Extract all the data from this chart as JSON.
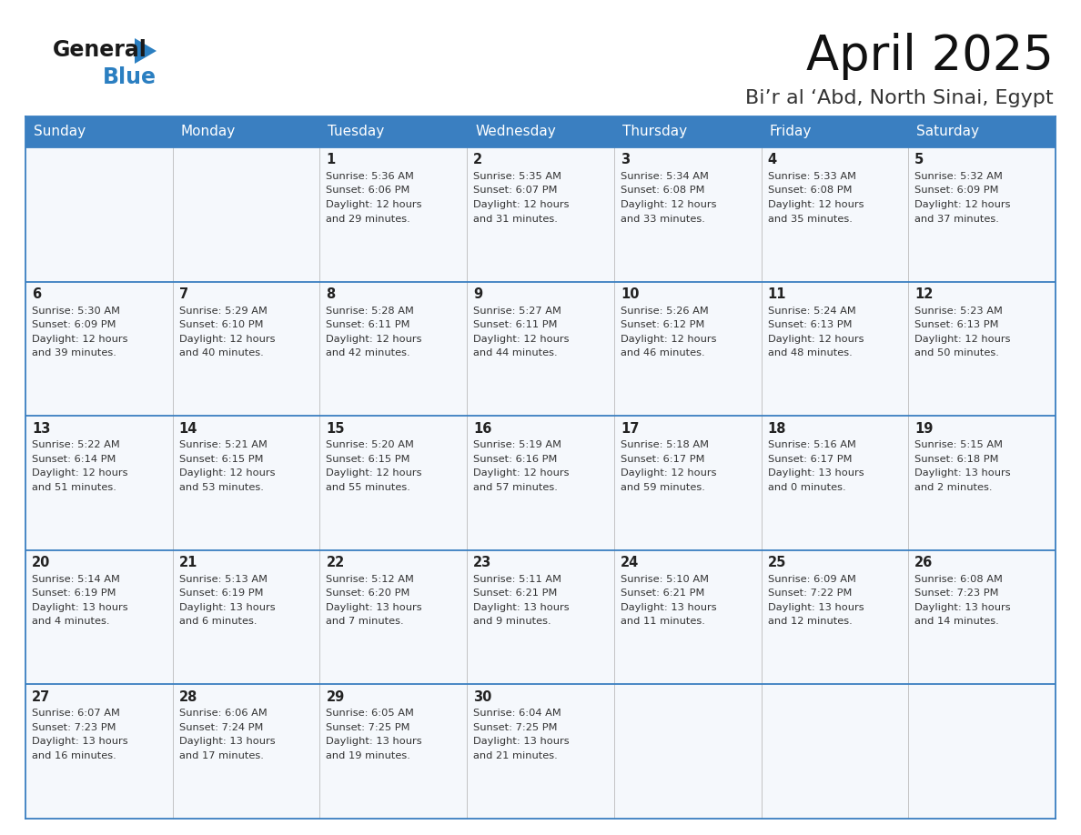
{
  "title": "April 2025",
  "subtitle": "Bi’r al ‘Abd, North Sinai, Egypt",
  "header_bg": "#3a7fc1",
  "header_text": "#ffffff",
  "cell_bg": "#f5f8fc",
  "border_color": "#3a7fc1",
  "text_color": "#333333",
  "days_of_week": [
    "Sunday",
    "Monday",
    "Tuesday",
    "Wednesday",
    "Thursday",
    "Friday",
    "Saturday"
  ],
  "weeks": [
    [
      {
        "day": "",
        "info": ""
      },
      {
        "day": "",
        "info": ""
      },
      {
        "day": "1",
        "info": "Sunrise: 5:36 AM\nSunset: 6:06 PM\nDaylight: 12 hours\nand 29 minutes."
      },
      {
        "day": "2",
        "info": "Sunrise: 5:35 AM\nSunset: 6:07 PM\nDaylight: 12 hours\nand 31 minutes."
      },
      {
        "day": "3",
        "info": "Sunrise: 5:34 AM\nSunset: 6:08 PM\nDaylight: 12 hours\nand 33 minutes."
      },
      {
        "day": "4",
        "info": "Sunrise: 5:33 AM\nSunset: 6:08 PM\nDaylight: 12 hours\nand 35 minutes."
      },
      {
        "day": "5",
        "info": "Sunrise: 5:32 AM\nSunset: 6:09 PM\nDaylight: 12 hours\nand 37 minutes."
      }
    ],
    [
      {
        "day": "6",
        "info": "Sunrise: 5:30 AM\nSunset: 6:09 PM\nDaylight: 12 hours\nand 39 minutes."
      },
      {
        "day": "7",
        "info": "Sunrise: 5:29 AM\nSunset: 6:10 PM\nDaylight: 12 hours\nand 40 minutes."
      },
      {
        "day": "8",
        "info": "Sunrise: 5:28 AM\nSunset: 6:11 PM\nDaylight: 12 hours\nand 42 minutes."
      },
      {
        "day": "9",
        "info": "Sunrise: 5:27 AM\nSunset: 6:11 PM\nDaylight: 12 hours\nand 44 minutes."
      },
      {
        "day": "10",
        "info": "Sunrise: 5:26 AM\nSunset: 6:12 PM\nDaylight: 12 hours\nand 46 minutes."
      },
      {
        "day": "11",
        "info": "Sunrise: 5:24 AM\nSunset: 6:13 PM\nDaylight: 12 hours\nand 48 minutes."
      },
      {
        "day": "12",
        "info": "Sunrise: 5:23 AM\nSunset: 6:13 PM\nDaylight: 12 hours\nand 50 minutes."
      }
    ],
    [
      {
        "day": "13",
        "info": "Sunrise: 5:22 AM\nSunset: 6:14 PM\nDaylight: 12 hours\nand 51 minutes."
      },
      {
        "day": "14",
        "info": "Sunrise: 5:21 AM\nSunset: 6:15 PM\nDaylight: 12 hours\nand 53 minutes."
      },
      {
        "day": "15",
        "info": "Sunrise: 5:20 AM\nSunset: 6:15 PM\nDaylight: 12 hours\nand 55 minutes."
      },
      {
        "day": "16",
        "info": "Sunrise: 5:19 AM\nSunset: 6:16 PM\nDaylight: 12 hours\nand 57 minutes."
      },
      {
        "day": "17",
        "info": "Sunrise: 5:18 AM\nSunset: 6:17 PM\nDaylight: 12 hours\nand 59 minutes."
      },
      {
        "day": "18",
        "info": "Sunrise: 5:16 AM\nSunset: 6:17 PM\nDaylight: 13 hours\nand 0 minutes."
      },
      {
        "day": "19",
        "info": "Sunrise: 5:15 AM\nSunset: 6:18 PM\nDaylight: 13 hours\nand 2 minutes."
      }
    ],
    [
      {
        "day": "20",
        "info": "Sunrise: 5:14 AM\nSunset: 6:19 PM\nDaylight: 13 hours\nand 4 minutes."
      },
      {
        "day": "21",
        "info": "Sunrise: 5:13 AM\nSunset: 6:19 PM\nDaylight: 13 hours\nand 6 minutes."
      },
      {
        "day": "22",
        "info": "Sunrise: 5:12 AM\nSunset: 6:20 PM\nDaylight: 13 hours\nand 7 minutes."
      },
      {
        "day": "23",
        "info": "Sunrise: 5:11 AM\nSunset: 6:21 PM\nDaylight: 13 hours\nand 9 minutes."
      },
      {
        "day": "24",
        "info": "Sunrise: 5:10 AM\nSunset: 6:21 PM\nDaylight: 13 hours\nand 11 minutes."
      },
      {
        "day": "25",
        "info": "Sunrise: 6:09 AM\nSunset: 7:22 PM\nDaylight: 13 hours\nand 12 minutes."
      },
      {
        "day": "26",
        "info": "Sunrise: 6:08 AM\nSunset: 7:23 PM\nDaylight: 13 hours\nand 14 minutes."
      }
    ],
    [
      {
        "day": "27",
        "info": "Sunrise: 6:07 AM\nSunset: 7:23 PM\nDaylight: 13 hours\nand 16 minutes."
      },
      {
        "day": "28",
        "info": "Sunrise: 6:06 AM\nSunset: 7:24 PM\nDaylight: 13 hours\nand 17 minutes."
      },
      {
        "day": "29",
        "info": "Sunrise: 6:05 AM\nSunset: 7:25 PM\nDaylight: 13 hours\nand 19 minutes."
      },
      {
        "day": "30",
        "info": "Sunrise: 6:04 AM\nSunset: 7:25 PM\nDaylight: 13 hours\nand 21 minutes."
      },
      {
        "day": "",
        "info": ""
      },
      {
        "day": "",
        "info": ""
      },
      {
        "day": "",
        "info": ""
      }
    ]
  ],
  "logo_general_color": "#1a1a1a",
  "logo_blue_color": "#2b7fc1",
  "logo_triangle_color": "#2b7fc1",
  "fig_width": 11.88,
  "fig_height": 9.18,
  "dpi": 100
}
